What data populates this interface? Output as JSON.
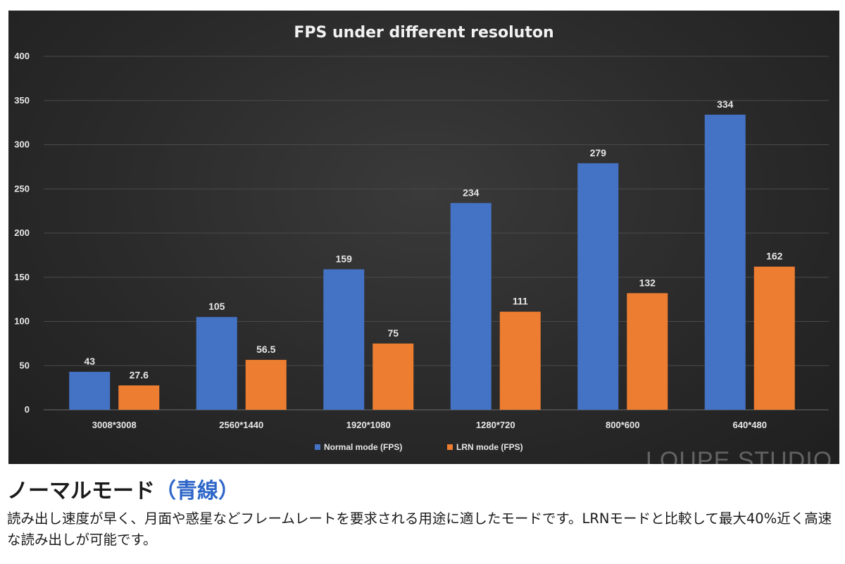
{
  "colors": {
    "normal": "#4472C4",
    "lrn": "#ED7D31",
    "grid": "#4a4a4a"
  },
  "chart_data": {
    "type": "bar",
    "title": "FPS under different resoluton",
    "categories": [
      "3008*3008",
      "2560*1440",
      "1920*1080",
      "1280*720",
      "800*600",
      "640*480"
    ],
    "series": [
      {
        "name": "Normal mode (FPS)",
        "values": [
          43,
          105,
          159,
          234,
          279,
          334
        ],
        "labels": [
          "43",
          "105",
          "159",
          "234",
          "279",
          "334"
        ]
      },
      {
        "name": "LRN mode (FPS)",
        "values": [
          27.6,
          56.5,
          75,
          111,
          132,
          162
        ],
        "labels": [
          "27.6",
          "56.5",
          "75",
          "111",
          "132",
          "162"
        ]
      }
    ],
    "ylim": [
      0,
      400
    ],
    "yticks": [
      0,
      50,
      100,
      150,
      200,
      250,
      300,
      350,
      400
    ],
    "xlabel": "",
    "ylabel": "",
    "grid": true,
    "legend": "bottom-center"
  },
  "watermark": "LOUPE STUDIO",
  "heading": {
    "main": "ノーマルモード",
    "open": "（",
    "colored": "青線",
    "close": "）"
  },
  "description": "読み出し速度が早く、月面や惑星などフレームレートを要求される用途に適したモードです。LRNモードと比較して最大40%近く高速な読み出しが可能です。"
}
